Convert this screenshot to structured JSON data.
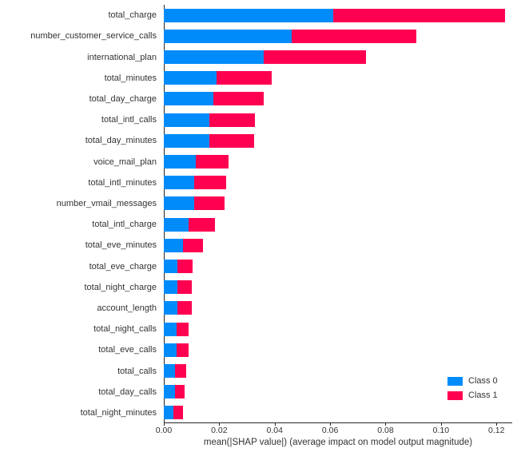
{
  "chart_data": {
    "type": "bar",
    "orientation": "horizontal",
    "stacked": true,
    "title": "",
    "xlabel": "mean(|SHAP value|) (average impact on model output magnitude)",
    "ylabel": "",
    "grid": false,
    "xlim": [
      0,
      0.1257
    ],
    "xticks": [
      0.0,
      0.02,
      0.04,
      0.06,
      0.08,
      0.1,
      0.12
    ],
    "xtick_labels": [
      "0.00",
      "0.02",
      "0.04",
      "0.06",
      "0.08",
      "0.10",
      "0.12"
    ],
    "legend_position": "lower right",
    "categories": [
      "total_charge",
      "number_customer_service_calls",
      "international_plan",
      "total_minutes",
      "total_day_charge",
      "total_intl_calls",
      "total_day_minutes",
      "voice_mail_plan",
      "total_intl_minutes",
      "number_vmail_messages",
      "total_intl_charge",
      "total_eve_minutes",
      "total_eve_charge",
      "total_night_charge",
      "account_length",
      "total_night_calls",
      "total_eve_calls",
      "total_calls",
      "total_day_calls",
      "total_night_minutes"
    ],
    "series": [
      {
        "name": "Class 0",
        "color": "#008bfb",
        "values": [
          0.061,
          0.046,
          0.036,
          0.019,
          0.018,
          0.0165,
          0.0165,
          0.0115,
          0.011,
          0.011,
          0.009,
          0.007,
          0.005,
          0.005,
          0.005,
          0.0045,
          0.0045,
          0.004,
          0.004,
          0.0035
        ]
      },
      {
        "name": "Class 1",
        "color": "#ff0051",
        "values": [
          0.062,
          0.045,
          0.037,
          0.02,
          0.018,
          0.0165,
          0.016,
          0.012,
          0.0115,
          0.011,
          0.0095,
          0.007,
          0.0055,
          0.005,
          0.005,
          0.0045,
          0.0045,
          0.004,
          0.0035,
          0.0035
        ]
      }
    ]
  },
  "colors": {
    "class0": "#008bfb",
    "class1": "#ff0051",
    "spine": "#262626",
    "text": "#333333",
    "background": "#ffffff"
  }
}
